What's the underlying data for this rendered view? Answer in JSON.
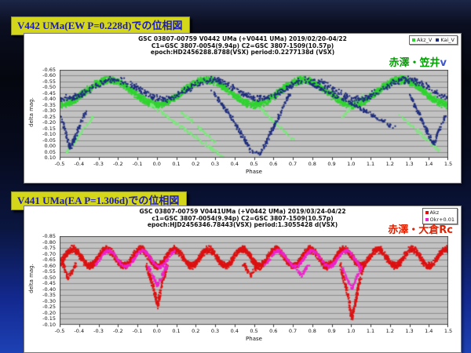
{
  "slide": {
    "titles": [
      {
        "text": "V442 UMa(EW P=0.228d)での位相図"
      },
      {
        "text": "V441 UMa(EA P=1.306d)での位相図"
      }
    ],
    "title_bg": "#d4d619",
    "title_fg": "#1b1cb4"
  },
  "chart_data": [
    {
      "type": "scatter",
      "title_lines": [
        "GSC 03807-00759   V0442 UMa (+V0441 UMa)   2019/02/20-04/22",
        "C1=GSC 3807-0054(9.94p)     C2=GSC 3807-1509(10.57p)",
        "epoch:HD2456288.8788(VSX)    period:0.2277138d (VSX)"
      ],
      "xlabel": "Phase",
      "ylabel": "delta mag.",
      "xlim": [
        -0.5,
        1.5
      ],
      "ylim_top": -0.65,
      "ylim_bottom": 0.1,
      "grid_step": 0.05,
      "grid_on": true,
      "plot_bg": "#c2c2c2",
      "grid_color": "#8a8a8a",
      "xticks": [
        "-0.5",
        "-0.4",
        "-0.3",
        "-0.2",
        "-0.1",
        "0.0",
        "0.1",
        "0.2",
        "0.3",
        "0.4",
        "0.5",
        "0.6",
        "0.7",
        "0.8",
        "0.9",
        "1.0",
        "1.1",
        "1.2",
        "1.3",
        "1.4",
        "1.5"
      ],
      "yticks": [
        "-0.65",
        "-0.60",
        "-0.55",
        "-0.50",
        "-0.45",
        "-0.40",
        "-0.35",
        "-0.30",
        "-0.25",
        "-0.20",
        "-0.15",
        "-0.10",
        "-0.05",
        "0.00",
        "0.05",
        "0.10"
      ],
      "legend_position": "top-right",
      "legend": [
        {
          "label": "Akz_V",
          "color": "#2fd42f"
        },
        {
          "label": "Kai_V",
          "color": "#1f2d7e"
        }
      ],
      "annotation": {
        "text": "赤澤・笠井",
        "suffix": "v",
        "color": "#00a000",
        "suffix_color": "#3a55d8"
      },
      "series": [
        {
          "name": "Akz_V EW light curve band",
          "kind": "cosine",
          "color": "#2fd42f",
          "center": -0.465,
          "amplitude": 0.105,
          "period": 0.5,
          "phase0": 0,
          "count": 2600,
          "jitter": 0.022,
          "dot": 2,
          "seed": 11
        },
        {
          "name": "Kai_V faint eclipse traces",
          "kind": "polylines",
          "color": "#7ce87c",
          "count": 430,
          "jitter": 0.011,
          "dot": 2,
          "seed": 22,
          "segments": [
            [
              [
                -0.47,
                0.05
              ],
              [
                -0.32,
                -0.28
              ]
            ],
            [
              [
                -0.04,
                -0.36
              ],
              [
                0.34,
                0.09
              ]
            ],
            [
              [
                0.12,
                -0.3
              ],
              [
                0.3,
                -0.04
              ]
            ],
            [
              [
                0.52,
                -0.34
              ],
              [
                0.7,
                -0.06
              ]
            ],
            [
              [
                0.95,
                -0.25
              ],
              [
                1.06,
                -0.44
              ]
            ],
            [
              [
                1.24,
                -0.28
              ],
              [
                1.45,
                0.03
              ]
            ]
          ]
        },
        {
          "name": "Kai_V band",
          "kind": "cosine",
          "color": "#1f2d7e",
          "center": -0.49,
          "amplitude": 0.08,
          "period": 0.5,
          "phase0": 0.03,
          "count": 800,
          "jitter": 0.02,
          "dot": 2,
          "seed": 33
        },
        {
          "name": "Kai_V deep dips (V441 eclipses folded)",
          "kind": "polylines",
          "color": "#1f2d7e",
          "count": 640,
          "jitter": 0.012,
          "dot": 2,
          "seed": 44,
          "segments": [
            [
              [
                -0.5,
                -0.28
              ],
              [
                -0.45,
                0.02
              ],
              [
                -0.37,
                -0.3
              ]
            ],
            [
              [
                0.28,
                -0.48
              ],
              [
                0.4,
                -0.2
              ],
              [
                0.48,
                0.04
              ],
              [
                0.53,
                0.06
              ],
              [
                0.6,
                -0.18
              ],
              [
                0.68,
                -0.45
              ]
            ],
            [
              [
                0.78,
                -0.54
              ],
              [
                1.0,
                -0.37
              ],
              [
                1.22,
                -0.16
              ]
            ],
            [
              [
                1.3,
                -0.44
              ],
              [
                1.42,
                -0.02
              ],
              [
                1.48,
                -0.26
              ]
            ]
          ]
        }
      ]
    },
    {
      "type": "scatter",
      "title_lines": [
        "GSC 03807-00759     V0441UMa (+V0442 UMa)   2019/03/24-04/22",
        "c1=GSC 3807-0054(9.94p)     C2=GSC 3807-1509(10.57p)",
        "epoch:HJD2456346.78443(VSX)    period:1.3055428 d(VSX)"
      ],
      "xlabel": "Phase",
      "ylabel": "delta mag.",
      "xlim": [
        -0.5,
        1.5
      ],
      "ylim_top": -0.85,
      "ylim_bottom": -0.1,
      "grid_step": 0.05,
      "grid_on": true,
      "plot_bg": "#c2c2c2",
      "grid_color": "#8a8a8a",
      "xticks": [
        "-0.5",
        "-0.4",
        "-0.3",
        "-0.2",
        "-0.1",
        "0.0",
        "0.1",
        "0.2",
        "0.3",
        "0.4",
        "0.5",
        "0.6",
        "0.7",
        "0.8",
        "0.9",
        "1.0",
        "1.1",
        "1.2",
        "1.3",
        "1.4",
        "1.5"
      ],
      "yticks": [
        "-0.85",
        "-0.80",
        "-0.75",
        "-0.70",
        "-0.65",
        "-0.60",
        "-0.55",
        "-0.50",
        "-0.45",
        "-0.40",
        "-0.35",
        "-0.30",
        "-0.25",
        "-0.20",
        "-0.15",
        "-0.10"
      ],
      "legend_position": "top-right",
      "legend": [
        {
          "label": "Akz",
          "color": "#dd1111"
        },
        {
          "label": "Okr+0.01",
          "color": "#ee22cc"
        }
      ],
      "annotation": {
        "text": "赤澤・大倉",
        "suffix": "Rc",
        "color": "#e02000",
        "suffix_color": "#e02000"
      },
      "series": [
        {
          "name": "Akz Rc out-of-eclipse scallops (EW contamination)",
          "kind": "cosine",
          "color": "#dd1111",
          "center": -0.675,
          "amplitude": 0.07,
          "period": 0.1746,
          "phase0": 0,
          "count": 3200,
          "jitter": 0.021,
          "dot": 2,
          "seed": 55
        },
        {
          "name": "Akz Rc eclipses",
          "kind": "polylines",
          "color": "#dd1111",
          "count": 540,
          "jitter": 0.013,
          "dot": 2,
          "seed": 66,
          "segments": [
            [
              [
                -0.49,
                -0.63
              ],
              [
                -0.46,
                -0.5
              ],
              [
                -0.42,
                -0.62
              ]
            ],
            [
              [
                -0.06,
                -0.62
              ],
              [
                -0.02,
                -0.42
              ],
              [
                0.0,
                -0.26
              ],
              [
                0.02,
                -0.44
              ],
              [
                0.05,
                -0.61
              ]
            ],
            [
              [
                0.44,
                -0.63
              ],
              [
                0.48,
                -0.52
              ],
              [
                0.52,
                -0.62
              ]
            ],
            [
              [
                0.94,
                -0.62
              ],
              [
                0.98,
                -0.36
              ],
              [
                1.0,
                -0.15
              ],
              [
                1.03,
                -0.4
              ],
              [
                1.06,
                -0.61
              ]
            ]
          ]
        },
        {
          "name": "Okr+0.01 scallops",
          "kind": "cosine",
          "color": "#ee22cc",
          "center": -0.665,
          "amplitude": 0.068,
          "period": 0.1746,
          "phase0": 0.01,
          "count": 650,
          "jitter": 0.011,
          "dot": 2,
          "seed": 77,
          "ranges": [
            [
              -0.32,
              0.09
            ],
            [
              0.55,
              1.04
            ]
          ]
        },
        {
          "name": "Okr+0.01 eclipse dips",
          "kind": "polylines",
          "color": "#ee22cc",
          "count": 210,
          "jitter": 0.009,
          "dot": 2,
          "seed": 88,
          "segments": [
            [
              [
                -0.05,
                -0.6
              ],
              [
                0.0,
                -0.44
              ],
              [
                0.05,
                -0.61
              ]
            ],
            [
              [
                0.7,
                -0.62
              ],
              [
                0.74,
                -0.52
              ],
              [
                0.78,
                -0.62
              ]
            ],
            [
              [
                0.95,
                -0.59
              ],
              [
                1.0,
                -0.41
              ],
              [
                1.05,
                -0.6
              ]
            ]
          ]
        }
      ]
    }
  ]
}
